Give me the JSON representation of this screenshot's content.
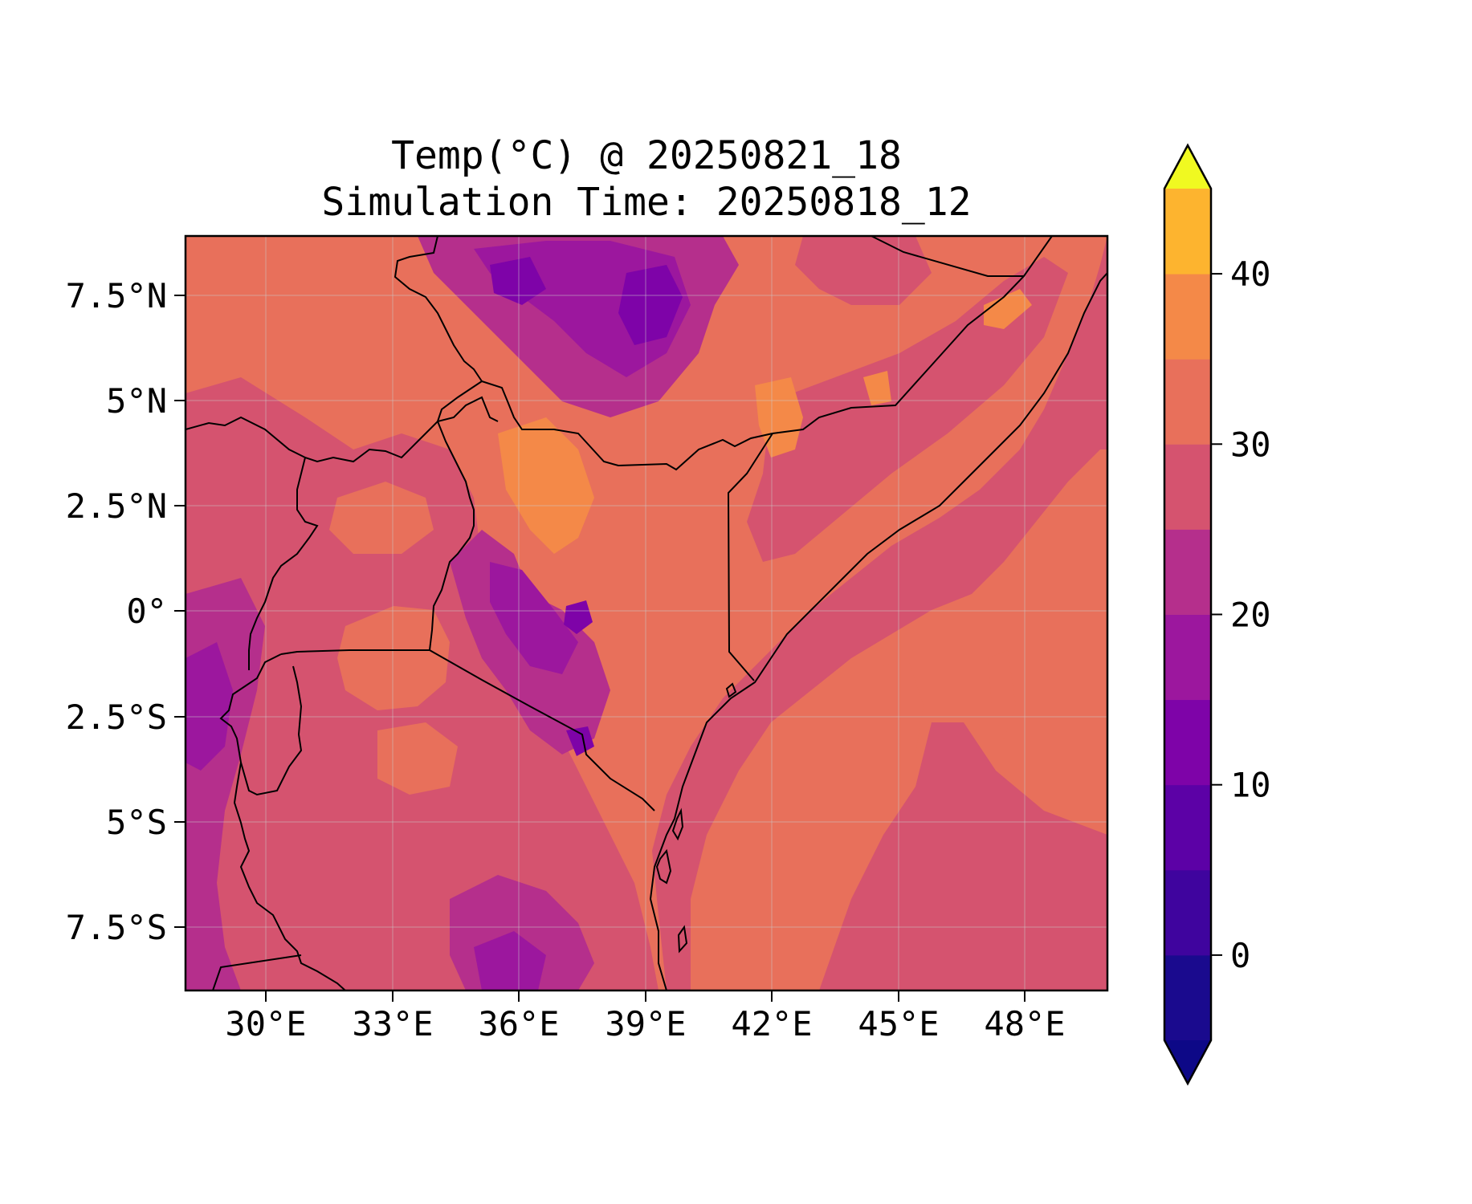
{
  "title": {
    "line1": "Temp(°C) @ 20250821_18",
    "line2": "Simulation Time: 20250818_12"
  },
  "map": {
    "lon_ticks": [
      "30°E",
      "33°E",
      "36°E",
      "39°E",
      "42°E",
      "45°E",
      "48°E"
    ],
    "lat_ticks": [
      "7.5°N",
      "5°N",
      "2.5°N",
      "0°",
      "2.5°S",
      "5°S",
      "7.5°S"
    ],
    "lon_range": [
      28.1,
      50.0
    ],
    "lat_range": [
      -9.0,
      8.9
    ],
    "gridlines": true
  },
  "colorbar": {
    "tick_labels": [
      "0",
      "10",
      "20",
      "30",
      "40"
    ],
    "levels": [
      -5,
      0,
      5,
      10,
      15,
      20,
      25,
      30,
      35,
      40,
      45
    ],
    "extend": "both",
    "colors": [
      "#1a0a8e",
      "#3f049e",
      "#5c01a6",
      "#7e03a8",
      "#9c179e",
      "#b52f8c",
      "#d5536f",
      "#e8705b",
      "#f48948",
      "#fdb42f",
      "#f0e826"
    ],
    "over_color": "#f0f921",
    "under_color": "#0d0887"
  },
  "colors": {
    "base_land": "#e8705b",
    "base_ocean": "#d5536f",
    "high_lands": "#b52f8c",
    "highlands_cold": "#9c179e",
    "peaks": "#7e03a8",
    "hot": "#f48948",
    "border": "#000000"
  }
}
